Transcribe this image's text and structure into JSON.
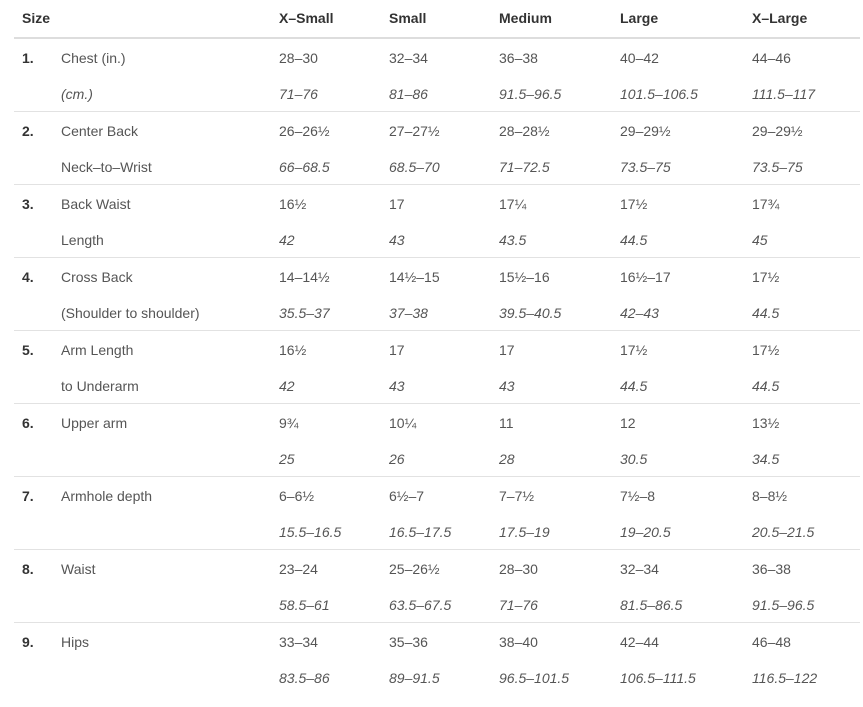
{
  "header": {
    "size": "Size",
    "columns": [
      "X–Small",
      "Small",
      "Medium",
      "Large",
      "X–Large"
    ]
  },
  "rows": [
    {
      "num": "1.",
      "label1": "Chest (in.)",
      "label2": "(cm.)",
      "label2_italic": true,
      "in": [
        "28–30",
        "32–34",
        "36–38",
        "40–42",
        "44–46"
      ],
      "cm": [
        "71–76",
        "81–86",
        "91.5–96.5",
        "101.5–106.5",
        "111.5–117"
      ]
    },
    {
      "num": "2.",
      "label1": "Center Back",
      "label2": "Neck–to–Wrist",
      "in": [
        "26–26½",
        "27–27½",
        "28–28½",
        "29–29½",
        "29–29½"
      ],
      "cm": [
        "66–68.5",
        "68.5–70",
        "71–72.5",
        "73.5–75",
        "73.5–75"
      ]
    },
    {
      "num": "3.",
      "label1": "Back Waist",
      "label2": "Length",
      "in": [
        "16½",
        "17",
        "17¼",
        "17½",
        "17¾"
      ],
      "cm": [
        "42",
        "43",
        "43.5",
        "44.5",
        "45"
      ]
    },
    {
      "num": "4.",
      "label1": "Cross Back",
      "label2": "(Shoulder to shoulder)",
      "in": [
        "14–14½",
        "14½–15",
        "15½–16",
        "16½–17",
        "17½"
      ],
      "cm": [
        "35.5–37",
        "37–38",
        "39.5–40.5",
        "42–43",
        "44.5"
      ]
    },
    {
      "num": "5.",
      "label1": "Arm Length",
      "label2": "to Underarm",
      "in": [
        "16½",
        "17",
        "17",
        "17½",
        "17½"
      ],
      "cm": [
        "42",
        "43",
        "43",
        "44.5",
        "44.5"
      ]
    },
    {
      "num": "6.",
      "label1": "Upper arm",
      "label2": "",
      "in": [
        "9¾",
        "10¼",
        "11",
        "12",
        "13½"
      ],
      "cm": [
        "25",
        "26",
        "28",
        "30.5",
        "34.5"
      ]
    },
    {
      "num": "7.",
      "label1": "Armhole depth",
      "label2": "",
      "in": [
        "6–6½",
        "6½–7",
        "7–7½",
        "7½–8",
        "8–8½"
      ],
      "cm": [
        "15.5–16.5",
        "16.5–17.5",
        "17.5–19",
        "19–20.5",
        "20.5–21.5"
      ]
    },
    {
      "num": "8.",
      "label1": "Waist",
      "label2": "",
      "in": [
        "23–24",
        "25–26½",
        "28–30",
        "32–34",
        "36–38"
      ],
      "cm": [
        "58.5–61",
        "63.5–67.5",
        "71–76",
        "81.5–86.5",
        "91.5–96.5"
      ]
    },
    {
      "num": "9.",
      "label1": "Hips",
      "label2": "",
      "in": [
        "33–34",
        "35–36",
        "38–40",
        "42–44",
        "46–48"
      ],
      "cm": [
        "83.5–86",
        "89–91.5",
        "96.5–101.5",
        "106.5–111.5",
        "116.5–122"
      ]
    }
  ]
}
